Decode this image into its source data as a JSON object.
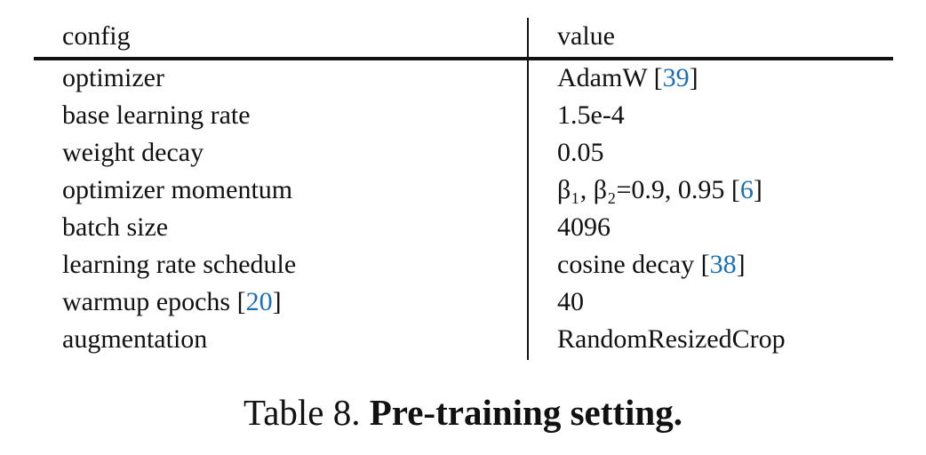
{
  "table": {
    "headers": {
      "config": "config",
      "value": "value"
    },
    "rows": [
      {
        "config": "optimizer",
        "config_cite": "",
        "value": "AdamW [",
        "value_cite": "39",
        "value_post": "]"
      },
      {
        "config": "base learning rate",
        "config_cite": "",
        "value": "1.5e-4",
        "value_cite": "",
        "value_post": ""
      },
      {
        "config": "weight decay",
        "config_cite": "",
        "value": "0.05",
        "value_cite": "",
        "value_post": ""
      },
      {
        "config": "optimizer momentum",
        "config_cite": "",
        "value": "β₁, β₂=0.9, 0.95 [",
        "value_cite": "6",
        "value_post": "]"
      },
      {
        "config": "batch size",
        "config_cite": "",
        "value": "4096",
        "value_cite": "",
        "value_post": ""
      },
      {
        "config": "learning rate schedule",
        "config_cite": "",
        "value": "cosine decay [",
        "value_cite": "38",
        "value_post": "]"
      },
      {
        "config": "warmup epochs [",
        "config_cite": "20",
        "config_post": "]",
        "value": "40",
        "value_cite": "",
        "value_post": ""
      },
      {
        "config": "augmentation",
        "config_cite": "",
        "value": "RandomResizedCrop",
        "value_cite": "",
        "value_post": ""
      }
    ]
  },
  "caption": {
    "label": "Table 8.",
    "title": "Pre-training setting."
  },
  "colors": {
    "citation": "#1a6fb5",
    "text": "#111111"
  }
}
